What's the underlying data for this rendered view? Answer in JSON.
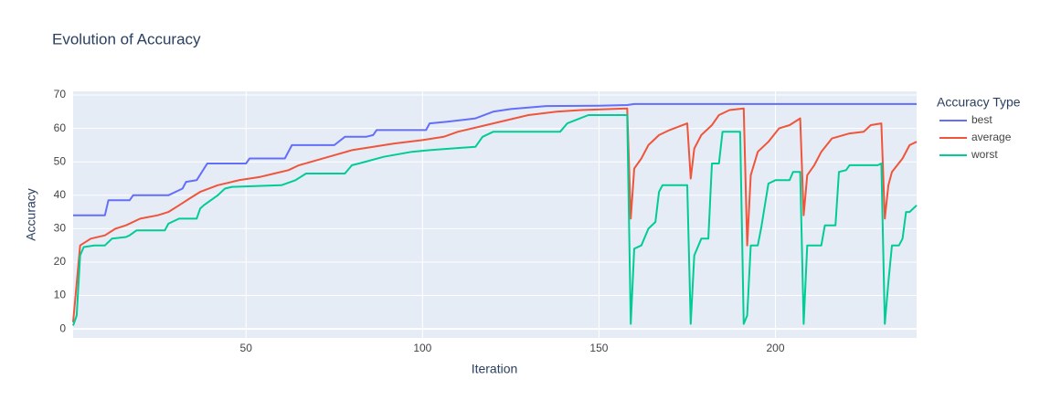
{
  "chart_data": {
    "type": "line",
    "title": "Evolution of Accuracy",
    "x_label": "Iteration",
    "y_label": "Accuracy",
    "legend_title": "Accuracy Type",
    "legend_position": "right",
    "grid": true,
    "background": "#e5ecf6",
    "xlim": [
      1,
      240
    ],
    "ylim": [
      -2.7,
      71.1
    ],
    "xticks": [
      50,
      100,
      150,
      200
    ],
    "yticks": [
      0,
      10,
      20,
      30,
      40,
      50,
      60,
      70
    ],
    "series": [
      {
        "name": "best",
        "color": "#636efa",
        "x": [
          1,
          10,
          11,
          17,
          18,
          28,
          30,
          32,
          33,
          36,
          39,
          50,
          51,
          61,
          63,
          75,
          78,
          84,
          86,
          87,
          101,
          102,
          107,
          115,
          120,
          125,
          135,
          150,
          158,
          160,
          240
        ],
        "values": [
          34,
          34,
          38.5,
          38.5,
          40,
          40,
          41,
          42,
          44,
          44.5,
          49.5,
          49.5,
          51,
          51,
          55,
          55,
          57.5,
          57.5,
          58,
          59.5,
          59.5,
          61.5,
          62,
          63,
          65,
          65.8,
          66.7,
          66.8,
          67,
          67.3,
          67.3
        ]
      },
      {
        "name": "average",
        "color": "#ef553b",
        "x": [
          1,
          3,
          6,
          10,
          13,
          16,
          20,
          25,
          28,
          31,
          34,
          37,
          42,
          48,
          54,
          58,
          62,
          65,
          70,
          75,
          80,
          86,
          92,
          100,
          106,
          110,
          118,
          124,
          130,
          138,
          145,
          158,
          159,
          160,
          162,
          164,
          167,
          170,
          175,
          176,
          177,
          179,
          182,
          184,
          187,
          191,
          192,
          193,
          195,
          198,
          201,
          204,
          207,
          208,
          209,
          211,
          213,
          216,
          221,
          225,
          227,
          230,
          231,
          232,
          233,
          236,
          238,
          240
        ],
        "values": [
          2,
          25,
          27,
          28,
          30,
          31,
          33,
          34,
          35,
          37,
          39,
          41,
          43,
          44.5,
          45.5,
          46.5,
          47.5,
          49,
          50.5,
          52,
          53.5,
          54.5,
          55.5,
          56.5,
          57.5,
          59,
          61,
          62.5,
          64,
          65,
          65.5,
          66,
          33,
          48,
          51,
          55,
          58,
          59.5,
          61.5,
          45,
          54,
          58,
          61,
          64,
          65.5,
          66,
          25,
          46,
          53,
          56,
          60,
          61,
          63,
          34,
          46,
          49,
          53,
          57,
          58.5,
          59,
          61,
          61.5,
          33,
          43,
          47,
          51,
          55,
          56
        ]
      },
      {
        "name": "worst",
        "color": "#00cc96",
        "x": [
          1,
          2,
          3,
          4,
          7,
          10,
          12,
          16,
          17,
          19,
          27,
          28,
          31,
          36,
          37,
          38,
          40,
          42,
          44,
          46,
          60,
          64,
          67,
          78,
          80,
          82,
          89,
          97,
          102,
          115,
          117,
          120,
          139,
          141,
          147,
          158,
          159,
          160,
          162,
          164,
          166,
          167,
          168,
          175,
          176,
          177,
          179,
          181,
          182,
          184,
          185,
          190,
          191,
          192,
          193,
          195,
          196,
          198,
          200,
          204,
          205,
          207,
          208,
          209,
          213,
          214,
          217,
          218,
          220,
          221,
          229,
          230,
          231,
          232,
          233,
          235,
          236,
          237,
          238,
          240
        ],
        "values": [
          1,
          4,
          22,
          24.5,
          25,
          25,
          27,
          27.5,
          28,
          29.5,
          29.5,
          31.5,
          33,
          33,
          36,
          37,
          38.5,
          40,
          42,
          42.5,
          43,
          44.5,
          46.5,
          46.5,
          49,
          49.5,
          51.5,
          53,
          53.5,
          54.5,
          57.5,
          59,
          59,
          61.5,
          64,
          64,
          1.5,
          24,
          25,
          30,
          32,
          41,
          43,
          43,
          1.5,
          22,
          27,
          27,
          49.5,
          49.5,
          59,
          59,
          1.5,
          4,
          25,
          25,
          30.5,
          43.5,
          44.5,
          44.5,
          47,
          47,
          1.5,
          25,
          25,
          31,
          31,
          47,
          47.5,
          49,
          49,
          49.5,
          1.5,
          14,
          25,
          25,
          27,
          35,
          35,
          37
        ]
      }
    ]
  }
}
